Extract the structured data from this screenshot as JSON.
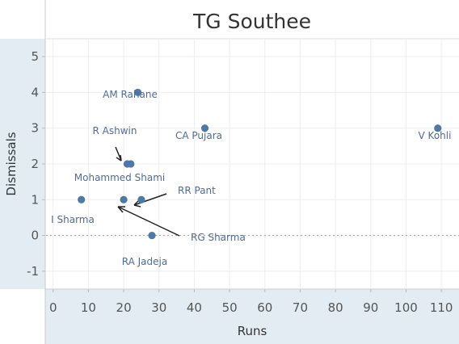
{
  "chart_data": {
    "type": "scatter",
    "title": "TG Southee",
    "xlabel": "Runs",
    "ylabel": "Dismissals",
    "xlim": [
      -2,
      115
    ],
    "ylim": [
      -1.5,
      5.5
    ],
    "x_ticks": [
      0,
      10,
      20,
      30,
      40,
      50,
      60,
      70,
      80,
      90,
      100,
      110
    ],
    "y_ticks": [
      -1,
      0,
      1,
      2,
      3,
      4,
      5
    ],
    "grid": true,
    "colors": {
      "point": "#4e79a7",
      "label": "#4e6d95",
      "zero_line": "#999999",
      "panel": "#e4ecf3"
    },
    "points": [
      {
        "name": "AM Rahane",
        "x": 24,
        "y": 4
      },
      {
        "name": "CA Pujara",
        "x": 43,
        "y": 3
      },
      {
        "name": "V Kohli",
        "x": 109,
        "y": 3
      },
      {
        "name": "R Ashwin",
        "x": 21,
        "y": 2
      },
      {
        "name": "Mohammed Shami",
        "x": 22,
        "y": 2
      },
      {
        "name": "I Sharma",
        "x": 8,
        "y": 1
      },
      {
        "name": "RG Sharma",
        "x": 20,
        "y": 1
      },
      {
        "name": "RR Pant",
        "x": 25,
        "y": 1
      },
      {
        "name": "RA Jadeja",
        "x": 28,
        "y": 0
      }
    ]
  }
}
